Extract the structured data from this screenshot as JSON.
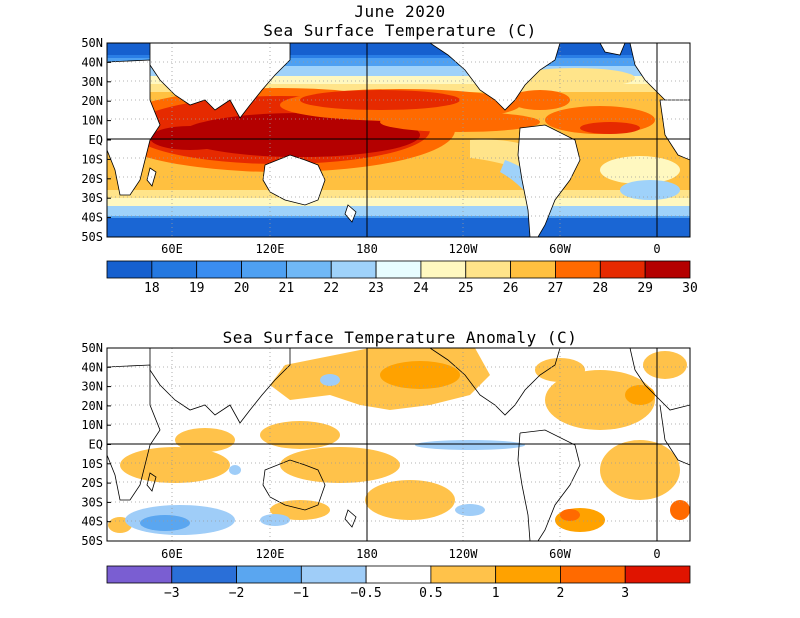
{
  "titles": {
    "month": "June 2020",
    "sst": "Sea Surface Temperature (C)",
    "anomaly": "Sea Surface Temperature Anomaly (C)"
  },
  "lat_labels": [
    "50N",
    "40N",
    "30N",
    "20N",
    "10N",
    "EQ",
    "10S",
    "20S",
    "30S",
    "40S",
    "50S"
  ],
  "lon_labels": [
    "60E",
    "120E",
    "180",
    "120W",
    "60W",
    "0"
  ],
  "sst_colorbar": {
    "colors": [
      "#1660cf",
      "#2478e0",
      "#3a8df0",
      "#4ea0f2",
      "#70b8f6",
      "#9fd2fa",
      "#e8fdff",
      "#fff8c0",
      "#ffe48a",
      "#ffc040",
      "#ff6a00",
      "#e62a00",
      "#b40000"
    ],
    "labels": [
      "18",
      "19",
      "20",
      "21",
      "22",
      "23",
      "24",
      "25",
      "26",
      "27",
      "28",
      "29",
      "30"
    ]
  },
  "anomaly_colorbar": {
    "colors": [
      "#7a5ed2",
      "#2a6fd8",
      "#5aa6f0",
      "#9fcdf8",
      "#ffffff",
      "#ffc24a",
      "#ffa200",
      "#ff6a00",
      "#e01400"
    ],
    "labels": [
      "−3",
      "−2",
      "−1",
      "−0.5",
      "0.5",
      "1",
      "2",
      "3"
    ]
  }
}
